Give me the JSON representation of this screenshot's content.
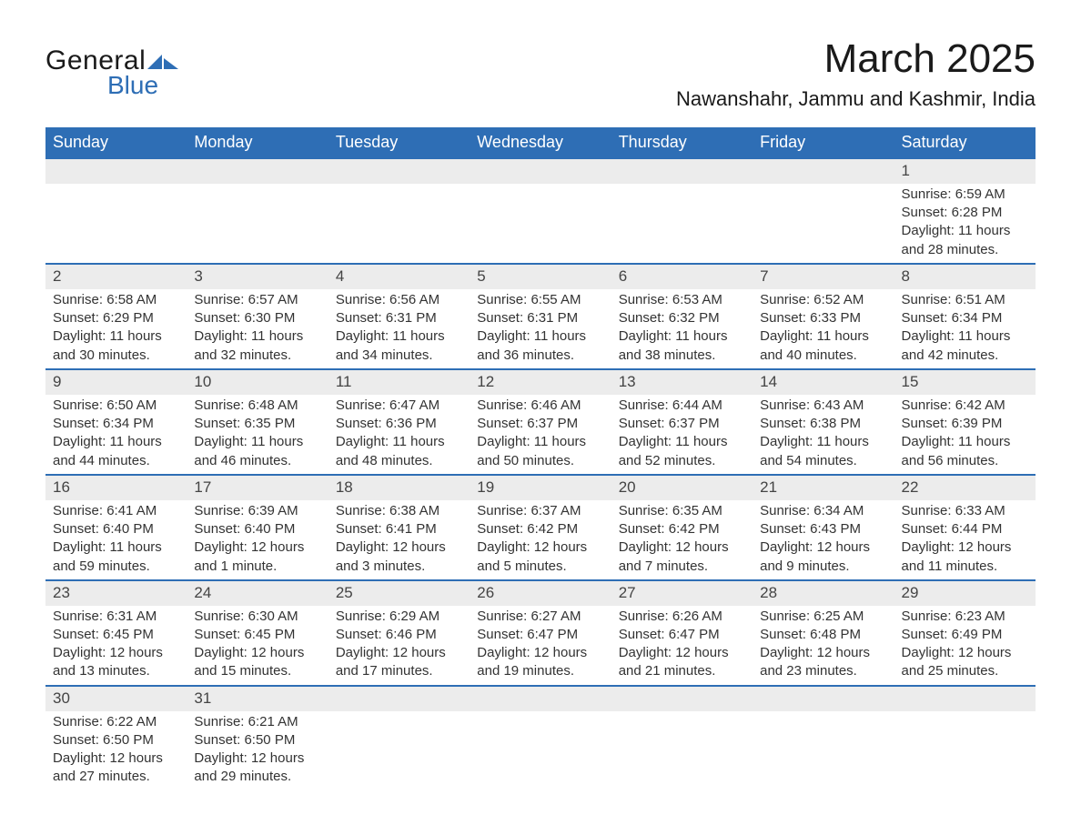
{
  "logo": {
    "general": "General",
    "blue": "Blue",
    "tri_color": "#2e6eb5"
  },
  "title": "March 2025",
  "location": "Nawanshahr, Jammu and Kashmir, India",
  "colors": {
    "header_bg": "#2e6eb5",
    "header_text": "#ffffff",
    "daynum_bg": "#ececec",
    "border_top": "#2e6eb5",
    "body_text": "#333333",
    "page_bg": "#ffffff"
  },
  "typography": {
    "title_fontsize": 44,
    "location_fontsize": 22,
    "weekday_fontsize": 18,
    "daynum_fontsize": 17,
    "cell_fontsize": 15,
    "font_family": "Arial"
  },
  "layout": {
    "columns": 7,
    "rows": 6
  },
  "weekdays": [
    "Sunday",
    "Monday",
    "Tuesday",
    "Wednesday",
    "Thursday",
    "Friday",
    "Saturday"
  ],
  "weeks": [
    [
      null,
      null,
      null,
      null,
      null,
      null,
      {
        "n": "1",
        "sr": "Sunrise: 6:59 AM",
        "ss": "Sunset: 6:28 PM",
        "d1": "Daylight: 11 hours",
        "d2": "and 28 minutes."
      }
    ],
    [
      {
        "n": "2",
        "sr": "Sunrise: 6:58 AM",
        "ss": "Sunset: 6:29 PM",
        "d1": "Daylight: 11 hours",
        "d2": "and 30 minutes."
      },
      {
        "n": "3",
        "sr": "Sunrise: 6:57 AM",
        "ss": "Sunset: 6:30 PM",
        "d1": "Daylight: 11 hours",
        "d2": "and 32 minutes."
      },
      {
        "n": "4",
        "sr": "Sunrise: 6:56 AM",
        "ss": "Sunset: 6:31 PM",
        "d1": "Daylight: 11 hours",
        "d2": "and 34 minutes."
      },
      {
        "n": "5",
        "sr": "Sunrise: 6:55 AM",
        "ss": "Sunset: 6:31 PM",
        "d1": "Daylight: 11 hours",
        "d2": "and 36 minutes."
      },
      {
        "n": "6",
        "sr": "Sunrise: 6:53 AM",
        "ss": "Sunset: 6:32 PM",
        "d1": "Daylight: 11 hours",
        "d2": "and 38 minutes."
      },
      {
        "n": "7",
        "sr": "Sunrise: 6:52 AM",
        "ss": "Sunset: 6:33 PM",
        "d1": "Daylight: 11 hours",
        "d2": "and 40 minutes."
      },
      {
        "n": "8",
        "sr": "Sunrise: 6:51 AM",
        "ss": "Sunset: 6:34 PM",
        "d1": "Daylight: 11 hours",
        "d2": "and 42 minutes."
      }
    ],
    [
      {
        "n": "9",
        "sr": "Sunrise: 6:50 AM",
        "ss": "Sunset: 6:34 PM",
        "d1": "Daylight: 11 hours",
        "d2": "and 44 minutes."
      },
      {
        "n": "10",
        "sr": "Sunrise: 6:48 AM",
        "ss": "Sunset: 6:35 PM",
        "d1": "Daylight: 11 hours",
        "d2": "and 46 minutes."
      },
      {
        "n": "11",
        "sr": "Sunrise: 6:47 AM",
        "ss": "Sunset: 6:36 PM",
        "d1": "Daylight: 11 hours",
        "d2": "and 48 minutes."
      },
      {
        "n": "12",
        "sr": "Sunrise: 6:46 AM",
        "ss": "Sunset: 6:37 PM",
        "d1": "Daylight: 11 hours",
        "d2": "and 50 minutes."
      },
      {
        "n": "13",
        "sr": "Sunrise: 6:44 AM",
        "ss": "Sunset: 6:37 PM",
        "d1": "Daylight: 11 hours",
        "d2": "and 52 minutes."
      },
      {
        "n": "14",
        "sr": "Sunrise: 6:43 AM",
        "ss": "Sunset: 6:38 PM",
        "d1": "Daylight: 11 hours",
        "d2": "and 54 minutes."
      },
      {
        "n": "15",
        "sr": "Sunrise: 6:42 AM",
        "ss": "Sunset: 6:39 PM",
        "d1": "Daylight: 11 hours",
        "d2": "and 56 minutes."
      }
    ],
    [
      {
        "n": "16",
        "sr": "Sunrise: 6:41 AM",
        "ss": "Sunset: 6:40 PM",
        "d1": "Daylight: 11 hours",
        "d2": "and 59 minutes."
      },
      {
        "n": "17",
        "sr": "Sunrise: 6:39 AM",
        "ss": "Sunset: 6:40 PM",
        "d1": "Daylight: 12 hours",
        "d2": "and 1 minute."
      },
      {
        "n": "18",
        "sr": "Sunrise: 6:38 AM",
        "ss": "Sunset: 6:41 PM",
        "d1": "Daylight: 12 hours",
        "d2": "and 3 minutes."
      },
      {
        "n": "19",
        "sr": "Sunrise: 6:37 AM",
        "ss": "Sunset: 6:42 PM",
        "d1": "Daylight: 12 hours",
        "d2": "and 5 minutes."
      },
      {
        "n": "20",
        "sr": "Sunrise: 6:35 AM",
        "ss": "Sunset: 6:42 PM",
        "d1": "Daylight: 12 hours",
        "d2": "and 7 minutes."
      },
      {
        "n": "21",
        "sr": "Sunrise: 6:34 AM",
        "ss": "Sunset: 6:43 PM",
        "d1": "Daylight: 12 hours",
        "d2": "and 9 minutes."
      },
      {
        "n": "22",
        "sr": "Sunrise: 6:33 AM",
        "ss": "Sunset: 6:44 PM",
        "d1": "Daylight: 12 hours",
        "d2": "and 11 minutes."
      }
    ],
    [
      {
        "n": "23",
        "sr": "Sunrise: 6:31 AM",
        "ss": "Sunset: 6:45 PM",
        "d1": "Daylight: 12 hours",
        "d2": "and 13 minutes."
      },
      {
        "n": "24",
        "sr": "Sunrise: 6:30 AM",
        "ss": "Sunset: 6:45 PM",
        "d1": "Daylight: 12 hours",
        "d2": "and 15 minutes."
      },
      {
        "n": "25",
        "sr": "Sunrise: 6:29 AM",
        "ss": "Sunset: 6:46 PM",
        "d1": "Daylight: 12 hours",
        "d2": "and 17 minutes."
      },
      {
        "n": "26",
        "sr": "Sunrise: 6:27 AM",
        "ss": "Sunset: 6:47 PM",
        "d1": "Daylight: 12 hours",
        "d2": "and 19 minutes."
      },
      {
        "n": "27",
        "sr": "Sunrise: 6:26 AM",
        "ss": "Sunset: 6:47 PM",
        "d1": "Daylight: 12 hours",
        "d2": "and 21 minutes."
      },
      {
        "n": "28",
        "sr": "Sunrise: 6:25 AM",
        "ss": "Sunset: 6:48 PM",
        "d1": "Daylight: 12 hours",
        "d2": "and 23 minutes."
      },
      {
        "n": "29",
        "sr": "Sunrise: 6:23 AM",
        "ss": "Sunset: 6:49 PM",
        "d1": "Daylight: 12 hours",
        "d2": "and 25 minutes."
      }
    ],
    [
      {
        "n": "30",
        "sr": "Sunrise: 6:22 AM",
        "ss": "Sunset: 6:50 PM",
        "d1": "Daylight: 12 hours",
        "d2": "and 27 minutes."
      },
      {
        "n": "31",
        "sr": "Sunrise: 6:21 AM",
        "ss": "Sunset: 6:50 PM",
        "d1": "Daylight: 12 hours",
        "d2": "and 29 minutes."
      },
      null,
      null,
      null,
      null,
      null
    ]
  ]
}
